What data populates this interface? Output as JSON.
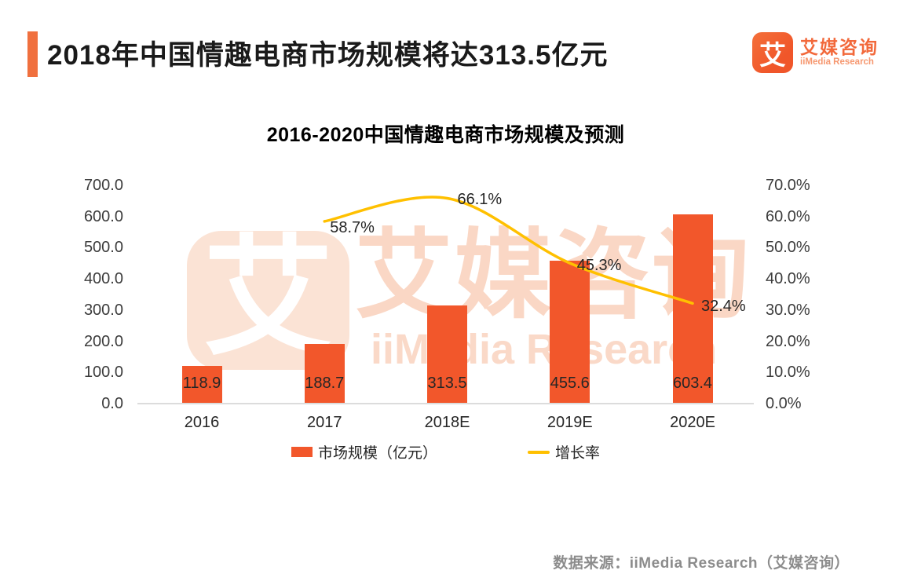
{
  "page": {
    "title": "2018年中国情趣电商市场规模将达313.5亿元",
    "source_note": "数据来源：iiMedia Research（艾媒咨询）"
  },
  "brand": {
    "logo_glyph": "艾",
    "name_cn": "艾媒咨询",
    "name_en": "iiMedia Research"
  },
  "watermark": {
    "glyph": "艾",
    "text_cn": "艾媒咨询",
    "text_en": "iiMedia Research"
  },
  "chart_data": {
    "type": "bar+line combo",
    "title": "2016-2020中国情趣电商市场规模及预测",
    "categories": [
      "2016",
      "2017",
      "2018E",
      "2019E",
      "2020E"
    ],
    "series": [
      {
        "name": "市场规模（亿元）",
        "type": "bar",
        "axis": "left",
        "values": [
          118.9,
          188.7,
          313.5,
          455.6,
          603.4
        ],
        "labels": [
          "118.9",
          "188.7",
          "313.5",
          "455.6",
          "603.4"
        ],
        "color": "#F2572B"
      },
      {
        "name": "增长率",
        "type": "line",
        "axis": "right",
        "values": [
          null,
          58.7,
          66.1,
          45.3,
          32.4
        ],
        "labels": [
          "58.7%",
          "66.1%",
          "45.3%",
          "32.4%"
        ],
        "color": "#FFC000"
      }
    ],
    "left_axis": {
      "min": 0,
      "max": 700,
      "ticks": [
        "700.0",
        "600.0",
        "500.0",
        "400.0",
        "300.0",
        "200.0",
        "100.0",
        "0.0"
      ]
    },
    "right_axis": {
      "min": 0,
      "max": 70,
      "ticks": [
        "70.0%",
        "60.0%",
        "50.0%",
        "40.0%",
        "30.0%",
        "20.0%",
        "10.0%",
        "0.0%"
      ]
    },
    "legend": {
      "position": "bottom",
      "items": [
        "市场规模（亿元）",
        "增长率"
      ]
    },
    "grid": "off"
  },
  "colors": {
    "bar": "#F2572B",
    "line": "#FFC000",
    "accent_bar": "#F0703E",
    "logo_orange": "#F0562A",
    "watermark_fill": "#FBE3D5",
    "source_gray": "#8C8C8C",
    "baseline_gray": "#DCDCDC"
  }
}
